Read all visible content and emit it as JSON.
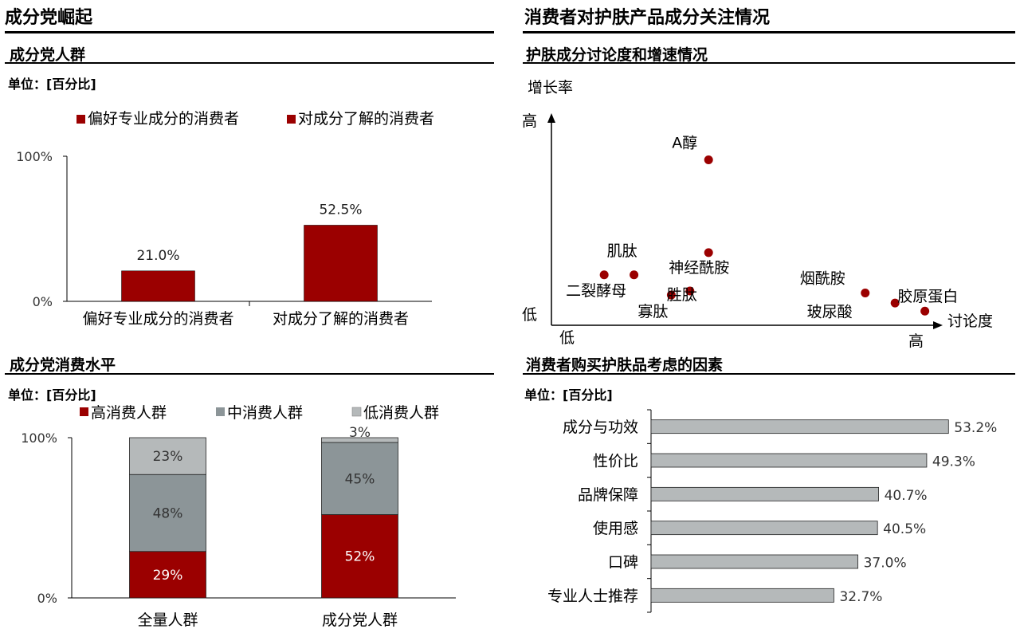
{
  "left": {
    "title": "成分党崛起",
    "chart1": {
      "subtitle": "成分党人群",
      "unit": "单位：[百分比]"
    },
    "chart2": {
      "subtitle": "成分党消费水平",
      "unit": "单位：[百分比]"
    }
  },
  "right": {
    "title": "消费者对护肤产品成分关注情况",
    "chart3": {
      "subtitle": "护肤成分讨论度和增速情况"
    },
    "chart4": {
      "subtitle": "消费者购买护肤品考虑的因素",
      "unit": "单位：[百分比]"
    }
  },
  "colors": {
    "red": "#9b0000",
    "gray_dark": "#8c9598",
    "gray_light": "#b5b9ba",
    "axis": "#000000"
  },
  "chart_data": [
    {
      "id": "chart1",
      "type": "bar",
      "categories": [
        "偏好专业成分的消费者",
        "对成分了解的消费者"
      ],
      "values": [
        21.0,
        52.5
      ],
      "value_labels": [
        "21.0%",
        "52.5%"
      ],
      "legend": [
        "偏好专业成分的消费者",
        "对成分了解的消费者"
      ],
      "legend_position": "top",
      "yticks": [
        "100%",
        "0%"
      ],
      "ylim": [
        0,
        100
      ]
    },
    {
      "id": "chart2",
      "type": "bar",
      "stacked": true,
      "categories": [
        "全量人群",
        "成分党人群"
      ],
      "series": [
        {
          "name": "高消费人群",
          "values": [
            29,
            52
          ],
          "labels": [
            "29%",
            "52%"
          ],
          "color": "#9b0000"
        },
        {
          "name": "中消费人群",
          "values": [
            48,
            45
          ],
          "labels": [
            "48%",
            "45%"
          ],
          "color": "#8c9598"
        },
        {
          "name": "低消费人群",
          "values": [
            23,
            3
          ],
          "labels": [
            "23%",
            "3%"
          ],
          "color": "#b5b9ba"
        }
      ],
      "legend_position": "top",
      "yticks": [
        "100%",
        "0%"
      ],
      "ylim": [
        0,
        100
      ]
    },
    {
      "id": "chart3",
      "type": "scatter",
      "ylabel": "增长率",
      "xlabel": "讨论度",
      "y_high": "高",
      "y_low": "低",
      "x_low": "低",
      "x_high": "高",
      "xlim": [
        0,
        100
      ],
      "ylim": [
        0,
        100
      ],
      "points": [
        {
          "label": "二裂酵母",
          "x": 12,
          "y": 25
        },
        {
          "label": "肌肽",
          "x": 20,
          "y": 25
        },
        {
          "label": "寡肽",
          "x": 30,
          "y": 15
        },
        {
          "label": "胜肽",
          "x": 35,
          "y": 17
        },
        {
          "label": "神经酰胺",
          "x": 40,
          "y": 36
        },
        {
          "label": "A醇",
          "x": 40,
          "y": 82
        },
        {
          "label": "烟酰胺",
          "x": 82,
          "y": 16
        },
        {
          "label": "胶原蛋白",
          "x": 90,
          "y": 11
        },
        {
          "label": "玻尿酸",
          "x": 98,
          "y": 7
        }
      ]
    },
    {
      "id": "chart4",
      "type": "bar",
      "orientation": "horizontal",
      "categories": [
        "成分与功效",
        "性价比",
        "品牌保障",
        "使用感",
        "口碑",
        "专业人士推荐"
      ],
      "values": [
        53.2,
        49.3,
        40.7,
        40.5,
        37.0,
        32.7
      ],
      "value_labels": [
        "53.2%",
        "49.3%",
        "40.7%",
        "40.5%",
        "37.0%",
        "32.7%"
      ],
      "xlim": [
        0,
        60
      ]
    }
  ]
}
